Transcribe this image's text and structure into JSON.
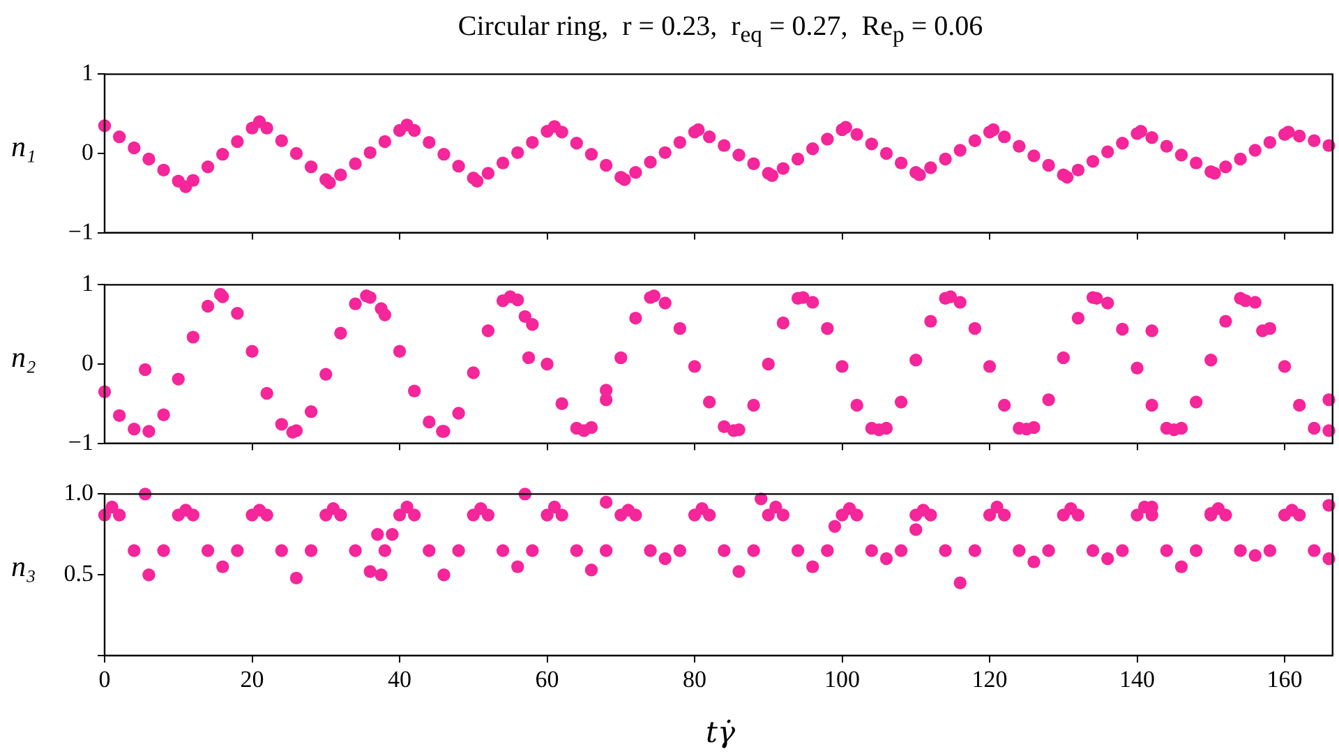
{
  "chart_data": [
    {
      "type": "scatter",
      "title": "Circular ring,  r = 0.23,  r$_{eq}$ = 0.27,  Re$_{p}$ = 0.06",
      "ylabel": "n₁",
      "marker": "circle",
      "color": "#f5259a",
      "tick_labels": "y",
      "xlim": [
        0,
        166.5
      ],
      "xticks": [
        20,
        40,
        60,
        80,
        100,
        120,
        140,
        160
      ],
      "ylim": [
        -1,
        1
      ],
      "yticks": [
        {
          "value": -1,
          "label": "−1"
        },
        {
          "value": 0,
          "label": "0"
        },
        1
      ],
      "x": [
        0,
        2,
        4,
        6,
        8,
        10,
        12,
        14,
        16,
        18,
        20,
        22,
        24,
        26,
        28,
        30,
        32,
        34,
        36,
        38,
        40,
        42,
        44,
        46,
        48,
        50,
        52,
        54,
        56,
        58,
        60,
        62,
        64,
        66,
        68,
        70,
        72,
        74,
        76,
        78,
        80,
        82,
        84,
        86,
        88,
        90,
        92,
        94,
        96,
        98,
        100,
        102,
        104,
        106,
        108,
        110,
        112,
        114,
        116,
        118,
        120,
        122,
        124,
        126,
        128,
        130,
        132,
        134,
        136,
        138,
        140,
        142,
        144,
        146,
        148,
        150,
        152,
        154,
        156,
        158,
        160,
        162,
        164,
        166,
        11,
        21,
        30.5,
        41,
        50.5,
        61,
        70.5,
        80.5,
        90.5,
        100.5,
        110.5,
        120.5,
        130.5,
        140.5,
        150.5,
        160.5
      ],
      "values": [
        0.35,
        0.21,
        0.07,
        -0.07,
        -0.21,
        -0.35,
        -0.34,
        -0.17,
        -0.01,
        0.15,
        0.32,
        0.32,
        0.16,
        0.0,
        -0.17,
        -0.33,
        -0.27,
        -0.13,
        0.01,
        0.15,
        0.29,
        0.29,
        0.14,
        -0.01,
        -0.16,
        -0.31,
        -0.25,
        -0.12,
        0.01,
        0.14,
        0.28,
        0.27,
        0.13,
        -0.01,
        -0.15,
        -0.3,
        -0.24,
        -0.11,
        0.01,
        0.14,
        0.27,
        0.21,
        0.1,
        -0.02,
        -0.13,
        -0.25,
        -0.19,
        -0.07,
        0.06,
        0.18,
        0.3,
        0.24,
        0.12,
        0.0,
        -0.12,
        -0.24,
        -0.18,
        -0.07,
        0.04,
        0.16,
        0.27,
        0.21,
        0.09,
        -0.03,
        -0.15,
        -0.27,
        -0.21,
        -0.1,
        0.02,
        0.13,
        0.25,
        0.2,
        0.09,
        -0.02,
        -0.12,
        -0.23,
        -0.17,
        -0.07,
        0.04,
        0.14,
        0.24,
        0.22,
        0.16,
        0.1,
        -0.42,
        0.4,
        -0.37,
        0.36,
        -0.35,
        0.34,
        -0.33,
        0.3,
        -0.28,
        0.33,
        -0.27,
        0.3,
        -0.3,
        0.28,
        -0.25,
        0.27
      ]
    },
    {
      "type": "scatter",
      "ylabel": "n₂",
      "marker": "circle",
      "color": "#f5259a",
      "tick_labels": "y",
      "xlim": [
        0,
        166.5
      ],
      "xticks": [
        20,
        40,
        60,
        80,
        100,
        120,
        140,
        160
      ],
      "ylim": [
        -1,
        1
      ],
      "yticks": [
        {
          "value": -1,
          "label": "−1"
        },
        {
          "value": 0,
          "label": "0"
        },
        1
      ],
      "x": [
        0,
        2,
        4,
        6,
        8,
        10,
        12,
        14,
        16,
        18,
        20,
        22,
        24,
        26,
        28,
        30,
        32,
        34,
        36,
        38,
        40,
        42,
        44,
        46,
        48,
        50,
        52,
        54,
        56,
        58,
        60,
        62,
        64,
        66,
        68,
        70,
        72,
        74,
        76,
        78,
        80,
        82,
        84,
        86,
        88,
        90,
        92,
        94,
        96,
        98,
        100,
        102,
        104,
        106,
        108,
        110,
        112,
        114,
        116,
        118,
        120,
        122,
        124,
        126,
        128,
        130,
        132,
        134,
        136,
        138,
        140,
        142,
        144,
        146,
        148,
        150,
        152,
        154,
        156,
        158,
        160,
        162,
        164,
        166,
        15.7,
        35.5,
        55,
        74.5,
        94.7,
        114.7,
        134.5,
        154.7,
        25.5,
        45.8,
        65,
        85.3,
        105,
        125,
        145,
        5.5,
        57,
        57.5,
        68,
        37.5,
        142,
        157,
        166
      ],
      "values": [
        -0.35,
        -0.65,
        -0.82,
        -0.85,
        -0.64,
        -0.19,
        0.34,
        0.73,
        0.85,
        0.64,
        0.16,
        -0.37,
        -0.76,
        -0.84,
        -0.6,
        -0.13,
        0.39,
        0.76,
        0.84,
        0.62,
        0.16,
        -0.34,
        -0.73,
        -0.85,
        -0.62,
        -0.11,
        0.42,
        0.8,
        0.81,
        0.5,
        0,
        -0.5,
        -0.81,
        -0.8,
        -0.45,
        0.08,
        0.58,
        0.84,
        0.77,
        0.45,
        -0.03,
        -0.48,
        -0.79,
        -0.83,
        -0.52,
        0,
        0.52,
        0.83,
        0.78,
        0.45,
        -0.03,
        -0.52,
        -0.81,
        -0.81,
        -0.48,
        0.05,
        0.54,
        0.83,
        0.78,
        0.45,
        -0.03,
        -0.52,
        -0.81,
        -0.8,
        -0.45,
        0.08,
        0.58,
        0.84,
        0.77,
        0.44,
        -0.05,
        -0.52,
        -0.81,
        -0.81,
        -0.48,
        0.05,
        0.54,
        0.83,
        0.78,
        0.45,
        -0.03,
        -0.52,
        -0.81,
        -0.84,
        0.88,
        0.86,
        0.85,
        0.86,
        0.84,
        0.85,
        0.83,
        0.8,
        -0.86,
        -0.85,
        -0.84,
        -0.84,
        -0.83,
        -0.82,
        -0.83,
        -0.07,
        0.6,
        0.08,
        -0.33,
        0.7,
        0.42,
        0.42,
        -0.45
      ]
    },
    {
      "type": "scatter",
      "ylabel": "n₃",
      "xlabel": "tγ̇",
      "marker": "circle",
      "color": "#f5259a",
      "xlim": [
        0,
        166.5
      ],
      "xticks": [
        {
          "value": 0,
          "label": "0"
        },
        20,
        40,
        60,
        80,
        100,
        120,
        140,
        160
      ],
      "ylim": [
        0,
        1
      ],
      "yticks": [
        {
          "value": 0,
          "label": null
        },
        {
          "value": 0.5,
          "label": "0.5"
        },
        {
          "value": 1,
          "label": "1.0"
        }
      ],
      "x": [
        0,
        2,
        4,
        6,
        8,
        10,
        12,
        14,
        16,
        18,
        20,
        22,
        24,
        26,
        28,
        30,
        32,
        34,
        36,
        38,
        40,
        42,
        44,
        46,
        48,
        50,
        52,
        54,
        56,
        58,
        60,
        62,
        64,
        66,
        68,
        70,
        72,
        74,
        76,
        78,
        80,
        82,
        84,
        86,
        88,
        90,
        92,
        94,
        96,
        98,
        100,
        102,
        104,
        106,
        108,
        110,
        112,
        114,
        116,
        118,
        120,
        122,
        124,
        126,
        128,
        130,
        132,
        134,
        136,
        138,
        140,
        142,
        144,
        146,
        148,
        150,
        152,
        154,
        156,
        158,
        160,
        162,
        164,
        166,
        1,
        11,
        21,
        31,
        41,
        51,
        61,
        71,
        81,
        91,
        101,
        111,
        121,
        131,
        141,
        151,
        161,
        5.5,
        57,
        68,
        37,
        39,
        89,
        99,
        110,
        142,
        150,
        166,
        37.5
      ],
      "values": [
        0.87,
        0.87,
        0.65,
        0.5,
        0.65,
        0.87,
        0.87,
        0.65,
        0.55,
        0.65,
        0.87,
        0.87,
        0.65,
        0.48,
        0.65,
        0.87,
        0.87,
        0.65,
        0.52,
        0.65,
        0.87,
        0.87,
        0.65,
        0.5,
        0.65,
        0.87,
        0.87,
        0.65,
        0.55,
        0.65,
        0.87,
        0.87,
        0.65,
        0.53,
        0.65,
        0.87,
        0.87,
        0.65,
        0.6,
        0.65,
        0.87,
        0.87,
        0.65,
        0.52,
        0.65,
        0.87,
        0.87,
        0.65,
        0.55,
        0.65,
        0.87,
        0.87,
        0.65,
        0.6,
        0.65,
        0.87,
        0.87,
        0.65,
        0.45,
        0.65,
        0.87,
        0.87,
        0.65,
        0.58,
        0.65,
        0.87,
        0.87,
        0.65,
        0.6,
        0.65,
        0.87,
        0.87,
        0.65,
        0.55,
        0.65,
        0.87,
        0.87,
        0.65,
        0.62,
        0.65,
        0.87,
        0.87,
        0.65,
        0.6,
        0.92,
        0.9,
        0.9,
        0.91,
        0.92,
        0.91,
        0.92,
        0.9,
        0.91,
        0.92,
        0.91,
        0.9,
        0.92,
        0.91,
        0.92,
        0.91,
        0.9,
        1.0,
        1.0,
        0.95,
        0.75,
        0.75,
        0.97,
        0.8,
        0.78,
        0.92,
        0.88,
        0.93,
        0.5
      ]
    }
  ]
}
